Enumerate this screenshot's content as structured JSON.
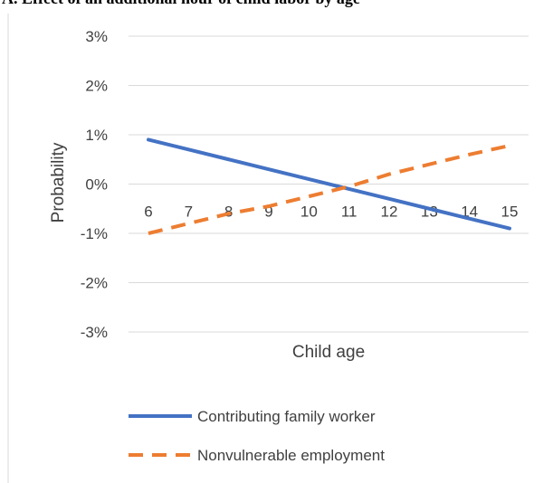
{
  "chart_data": {
    "type": "line",
    "title": "A. Effect of an additional hour of child labor by age",
    "xlabel": "Child age",
    "ylabel": "Probability",
    "x": [
      6,
      7,
      8,
      9,
      10,
      11,
      12,
      13,
      14,
      15
    ],
    "ylim": [
      -0.03,
      0.03
    ],
    "y_ticks": [
      "3%",
      "2%",
      "1%",
      "0%",
      "-1%",
      "-2%",
      "-3%"
    ],
    "x_ticks": [
      "6",
      "7",
      "8",
      "9",
      "10",
      "11",
      "12",
      "13",
      "14",
      "15"
    ],
    "grid": true,
    "legend_position": "bottom",
    "series": [
      {
        "name": "Contributing family worker",
        "color": "#4472C4",
        "style": "solid",
        "values": [
          0.009,
          0.007,
          0.005,
          0.003,
          0.001,
          -0.001,
          -0.003,
          -0.005,
          -0.007,
          -0.009
        ]
      },
      {
        "name": "Nonvulnerable employment",
        "color": "#ED7D31",
        "style": "dashed",
        "values": [
          -0.01,
          -0.008,
          -0.006,
          -0.0045,
          -0.0025,
          -0.0005,
          0.002,
          0.004,
          0.006,
          0.0078
        ]
      }
    ]
  }
}
